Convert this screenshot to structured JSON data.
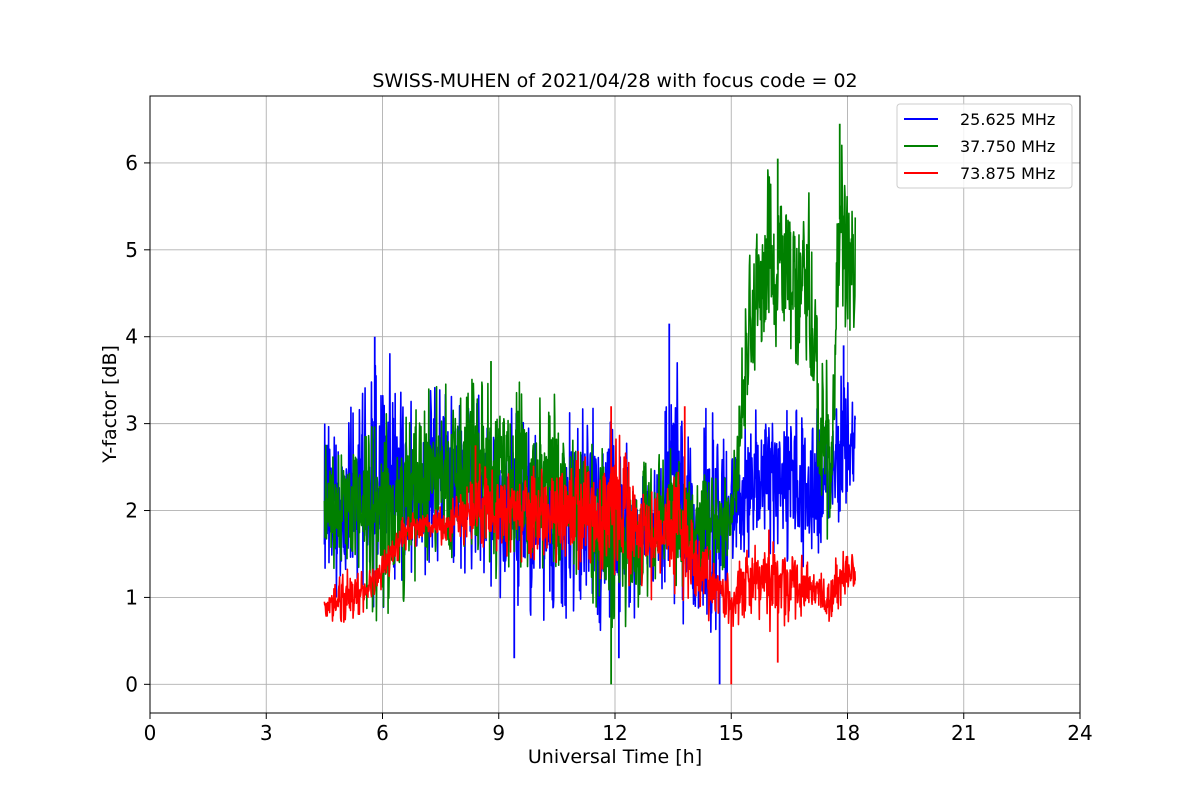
{
  "chart_data": {
    "type": "line",
    "title": "SWISS-MUHEN of 2021/04/28 with focus code = 02",
    "xlabel": "Universal Time [h]",
    "ylabel": "Y-factor [dB]",
    "xlim": [
      0,
      24
    ],
    "ylim": [
      -0.33,
      6.77
    ],
    "xticks": [
      0,
      3,
      6,
      9,
      12,
      15,
      18,
      21,
      24
    ],
    "yticks": [
      0,
      1,
      2,
      3,
      4,
      5,
      6
    ],
    "grid": true,
    "legend_position": "top-right",
    "series": [
      {
        "name": "25.625 MHz",
        "color": "#0000ff",
        "x": [
          4.5,
          5.0,
          5.5,
          6.0,
          6.5,
          7.0,
          7.5,
          8.0,
          8.5,
          9.0,
          9.5,
          10.0,
          10.5,
          11.0,
          11.5,
          12.0,
          12.5,
          13.0,
          13.5,
          14.0,
          14.5,
          15.0,
          15.5,
          16.0,
          16.5,
          17.0,
          17.5,
          18.0,
          18.2
        ],
        "low": [
          1.0,
          0.7,
          0.8,
          0.8,
          0.9,
          1.2,
          1.3,
          1.3,
          1.2,
          1.0,
          0.8,
          0.7,
          0.7,
          0.7,
          0.6,
          0.6,
          0.7,
          1.0,
          0.9,
          0.5,
          0.2,
          1.2,
          1.4,
          1.4,
          1.4,
          1.3,
          1.7,
          1.9,
          2.1
        ],
        "high": [
          3.0,
          3.1,
          3.4,
          4.0,
          3.5,
          3.3,
          3.6,
          3.3,
          3.4,
          3.2,
          3.2,
          3.0,
          2.8,
          3.3,
          3.3,
          3.0,
          2.7,
          2.5,
          4.1,
          3.2,
          3.4,
          2.6,
          3.1,
          3.5,
          3.2,
          3.3,
          3.0,
          3.9,
          3.5
        ],
        "peaks": [
          [
            5.8,
            4.0
          ],
          [
            13.4,
            4.15
          ],
          [
            17.9,
            3.9
          ],
          [
            14.7,
            0.0
          ],
          [
            12.1,
            0.3
          ],
          [
            9.4,
            0.3
          ]
        ]
      },
      {
        "name": "37.750 MHz",
        "color": "#008000",
        "x": [
          4.5,
          5.0,
          5.5,
          6.0,
          6.5,
          7.0,
          7.5,
          8.0,
          8.5,
          9.0,
          9.5,
          10.0,
          10.5,
          11.0,
          11.5,
          12.0,
          12.5,
          13.0,
          13.5,
          14.0,
          14.5,
          15.0,
          15.2,
          15.5,
          16.0,
          16.5,
          17.0,
          17.3,
          17.6,
          17.8,
          18.0,
          18.2
        ],
        "low": [
          1.2,
          1.1,
          0.8,
          0.6,
          0.9,
          1.3,
          1.4,
          1.3,
          1.2,
          1.2,
          1.3,
          1.2,
          1.3,
          1.2,
          0.8,
          0.5,
          0.7,
          1.0,
          1.1,
          1.1,
          1.2,
          1.4,
          1.8,
          3.3,
          3.5,
          3.8,
          3.4,
          1.7,
          1.5,
          4.3,
          4.0,
          4.1
        ],
        "high": [
          2.8,
          2.9,
          3.0,
          3.1,
          3.2,
          3.4,
          3.5,
          3.6,
          3.5,
          3.6,
          3.5,
          3.3,
          3.4,
          3.0,
          2.9,
          2.6,
          2.5,
          2.8,
          2.7,
          2.5,
          2.4,
          2.4,
          3.6,
          5.3,
          6.0,
          5.8,
          5.8,
          3.9,
          3.7,
          6.4,
          5.9,
          5.4
        ],
        "peaks": [
          [
            11.9,
            0.0
          ],
          [
            17.8,
            6.45
          ],
          [
            16.2,
            6.05
          ],
          [
            8.8,
            3.72
          ]
        ]
      },
      {
        "name": "73.875 MHz",
        "color": "#ff0000",
        "x": [
          4.5,
          5.0,
          5.5,
          6.0,
          6.5,
          7.0,
          7.5,
          8.0,
          8.5,
          9.0,
          9.5,
          10.0,
          10.5,
          11.0,
          11.5,
          12.0,
          12.5,
          13.0,
          13.5,
          14.0,
          14.5,
          15.0,
          15.5,
          16.0,
          16.5,
          17.0,
          17.5,
          18.0,
          18.2
        ],
        "low": [
          0.7,
          0.7,
          0.8,
          1.1,
          1.5,
          1.6,
          1.6,
          1.6,
          1.6,
          1.5,
          1.4,
          1.4,
          1.4,
          1.3,
          1.2,
          1.1,
          1.0,
          0.9,
          0.9,
          1.0,
          0.6,
          0.6,
          0.8,
          0.6,
          0.7,
          0.8,
          0.7,
          1.0,
          1.1
        ],
        "high": [
          1.0,
          1.4,
          1.3,
          1.5,
          2.0,
          2.0,
          2.1,
          2.2,
          2.6,
          2.4,
          2.6,
          2.5,
          2.6,
          2.8,
          2.6,
          3.2,
          2.6,
          2.2,
          2.9,
          2.0,
          1.5,
          1.3,
          1.6,
          1.8,
          1.6,
          1.5,
          1.3,
          1.7,
          1.4
        ],
        "peaks": [
          [
            11.9,
            3.2
          ],
          [
            13.8,
            3.2
          ],
          [
            15.0,
            0.0
          ],
          [
            16.2,
            0.25
          ],
          [
            8.4,
            2.75
          ]
        ]
      }
    ]
  }
}
